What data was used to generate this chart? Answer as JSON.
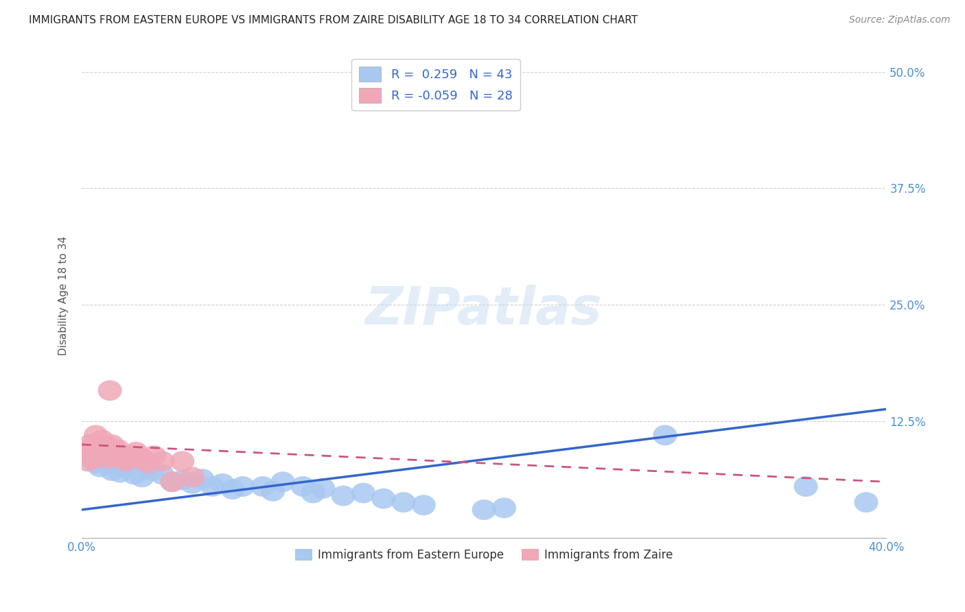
{
  "title": "IMMIGRANTS FROM EASTERN EUROPE VS IMMIGRANTS FROM ZAIRE DISABILITY AGE 18 TO 34 CORRELATION CHART",
  "source": "Source: ZipAtlas.com",
  "ylabel": "Disability Age 18 to 34",
  "xlim": [
    0.0,
    0.4
  ],
  "ylim": [
    0.0,
    0.52
  ],
  "yticks": [
    0.0,
    0.125,
    0.25,
    0.375,
    0.5
  ],
  "ytick_labels": [
    "",
    "12.5%",
    "25.0%",
    "37.5%",
    "50.0%"
  ],
  "xticks": [
    0.0,
    0.08,
    0.16,
    0.24,
    0.32,
    0.4
  ],
  "xtick_labels": [
    "0.0%",
    "",
    "",
    "",
    "",
    "40.0%"
  ],
  "grid_color": "#d0d0d0",
  "background_color": "#ffffff",
  "blue_color": "#a8c8f0",
  "pink_color": "#f0a8b8",
  "blue_line_color": "#3366cc",
  "pink_line_color": "#cc5577",
  "r_blue": 0.259,
  "n_blue": 43,
  "r_pink": -0.059,
  "n_pink": 28,
  "legend_label_blue": "Immigrants from Eastern Europe",
  "legend_label_pink": "Immigrants from Zaire",
  "watermark": "ZIPatlas",
  "blue_scatter": [
    [
      0.002,
      0.09
    ],
    [
      0.004,
      0.085
    ],
    [
      0.006,
      0.092
    ],
    [
      0.007,
      0.08
    ],
    [
      0.008,
      0.088
    ],
    [
      0.009,
      0.076
    ],
    [
      0.01,
      0.095
    ],
    [
      0.011,
      0.083
    ],
    [
      0.012,
      0.087
    ],
    [
      0.014,
      0.078
    ],
    [
      0.015,
      0.072
    ],
    [
      0.017,
      0.082
    ],
    [
      0.019,
      0.07
    ],
    [
      0.021,
      0.075
    ],
    [
      0.023,
      0.08
    ],
    [
      0.026,
      0.068
    ],
    [
      0.03,
      0.065
    ],
    [
      0.035,
      0.072
    ],
    [
      0.04,
      0.068
    ],
    [
      0.045,
      0.06
    ],
    [
      0.05,
      0.062
    ],
    [
      0.055,
      0.058
    ],
    [
      0.06,
      0.063
    ],
    [
      0.065,
      0.055
    ],
    [
      0.07,
      0.058
    ],
    [
      0.075,
      0.052
    ],
    [
      0.08,
      0.055
    ],
    [
      0.09,
      0.055
    ],
    [
      0.095,
      0.05
    ],
    [
      0.1,
      0.06
    ],
    [
      0.11,
      0.055
    ],
    [
      0.115,
      0.048
    ],
    [
      0.12,
      0.053
    ],
    [
      0.13,
      0.045
    ],
    [
      0.14,
      0.048
    ],
    [
      0.15,
      0.042
    ],
    [
      0.16,
      0.038
    ],
    [
      0.17,
      0.035
    ],
    [
      0.2,
      0.03
    ],
    [
      0.21,
      0.032
    ],
    [
      0.29,
      0.11
    ],
    [
      0.36,
      0.055
    ],
    [
      0.39,
      0.038
    ]
  ],
  "pink_scatter": [
    [
      0.002,
      0.095
    ],
    [
      0.003,
      0.082
    ],
    [
      0.004,
      0.1
    ],
    [
      0.005,
      0.09
    ],
    [
      0.006,
      0.085
    ],
    [
      0.007,
      0.11
    ],
    [
      0.008,
      0.092
    ],
    [
      0.009,
      0.088
    ],
    [
      0.01,
      0.105
    ],
    [
      0.011,
      0.095
    ],
    [
      0.012,
      0.1
    ],
    [
      0.013,
      0.085
    ],
    [
      0.014,
      0.158
    ],
    [
      0.015,
      0.1
    ],
    [
      0.016,
      0.092
    ],
    [
      0.018,
      0.095
    ],
    [
      0.019,
      0.088
    ],
    [
      0.02,
      0.085
    ],
    [
      0.022,
      0.082
    ],
    [
      0.025,
      0.088
    ],
    [
      0.027,
      0.092
    ],
    [
      0.03,
      0.085
    ],
    [
      0.033,
      0.08
    ],
    [
      0.036,
      0.088
    ],
    [
      0.04,
      0.082
    ],
    [
      0.045,
      0.06
    ],
    [
      0.05,
      0.082
    ],
    [
      0.055,
      0.065
    ]
  ],
  "blue_line_x0": 0.0,
  "blue_line_y0": 0.03,
  "blue_line_x1": 0.4,
  "blue_line_y1": 0.138,
  "pink_line_x0": 0.0,
  "pink_line_y0": 0.1,
  "pink_line_x1": 0.4,
  "pink_line_y1": 0.06
}
